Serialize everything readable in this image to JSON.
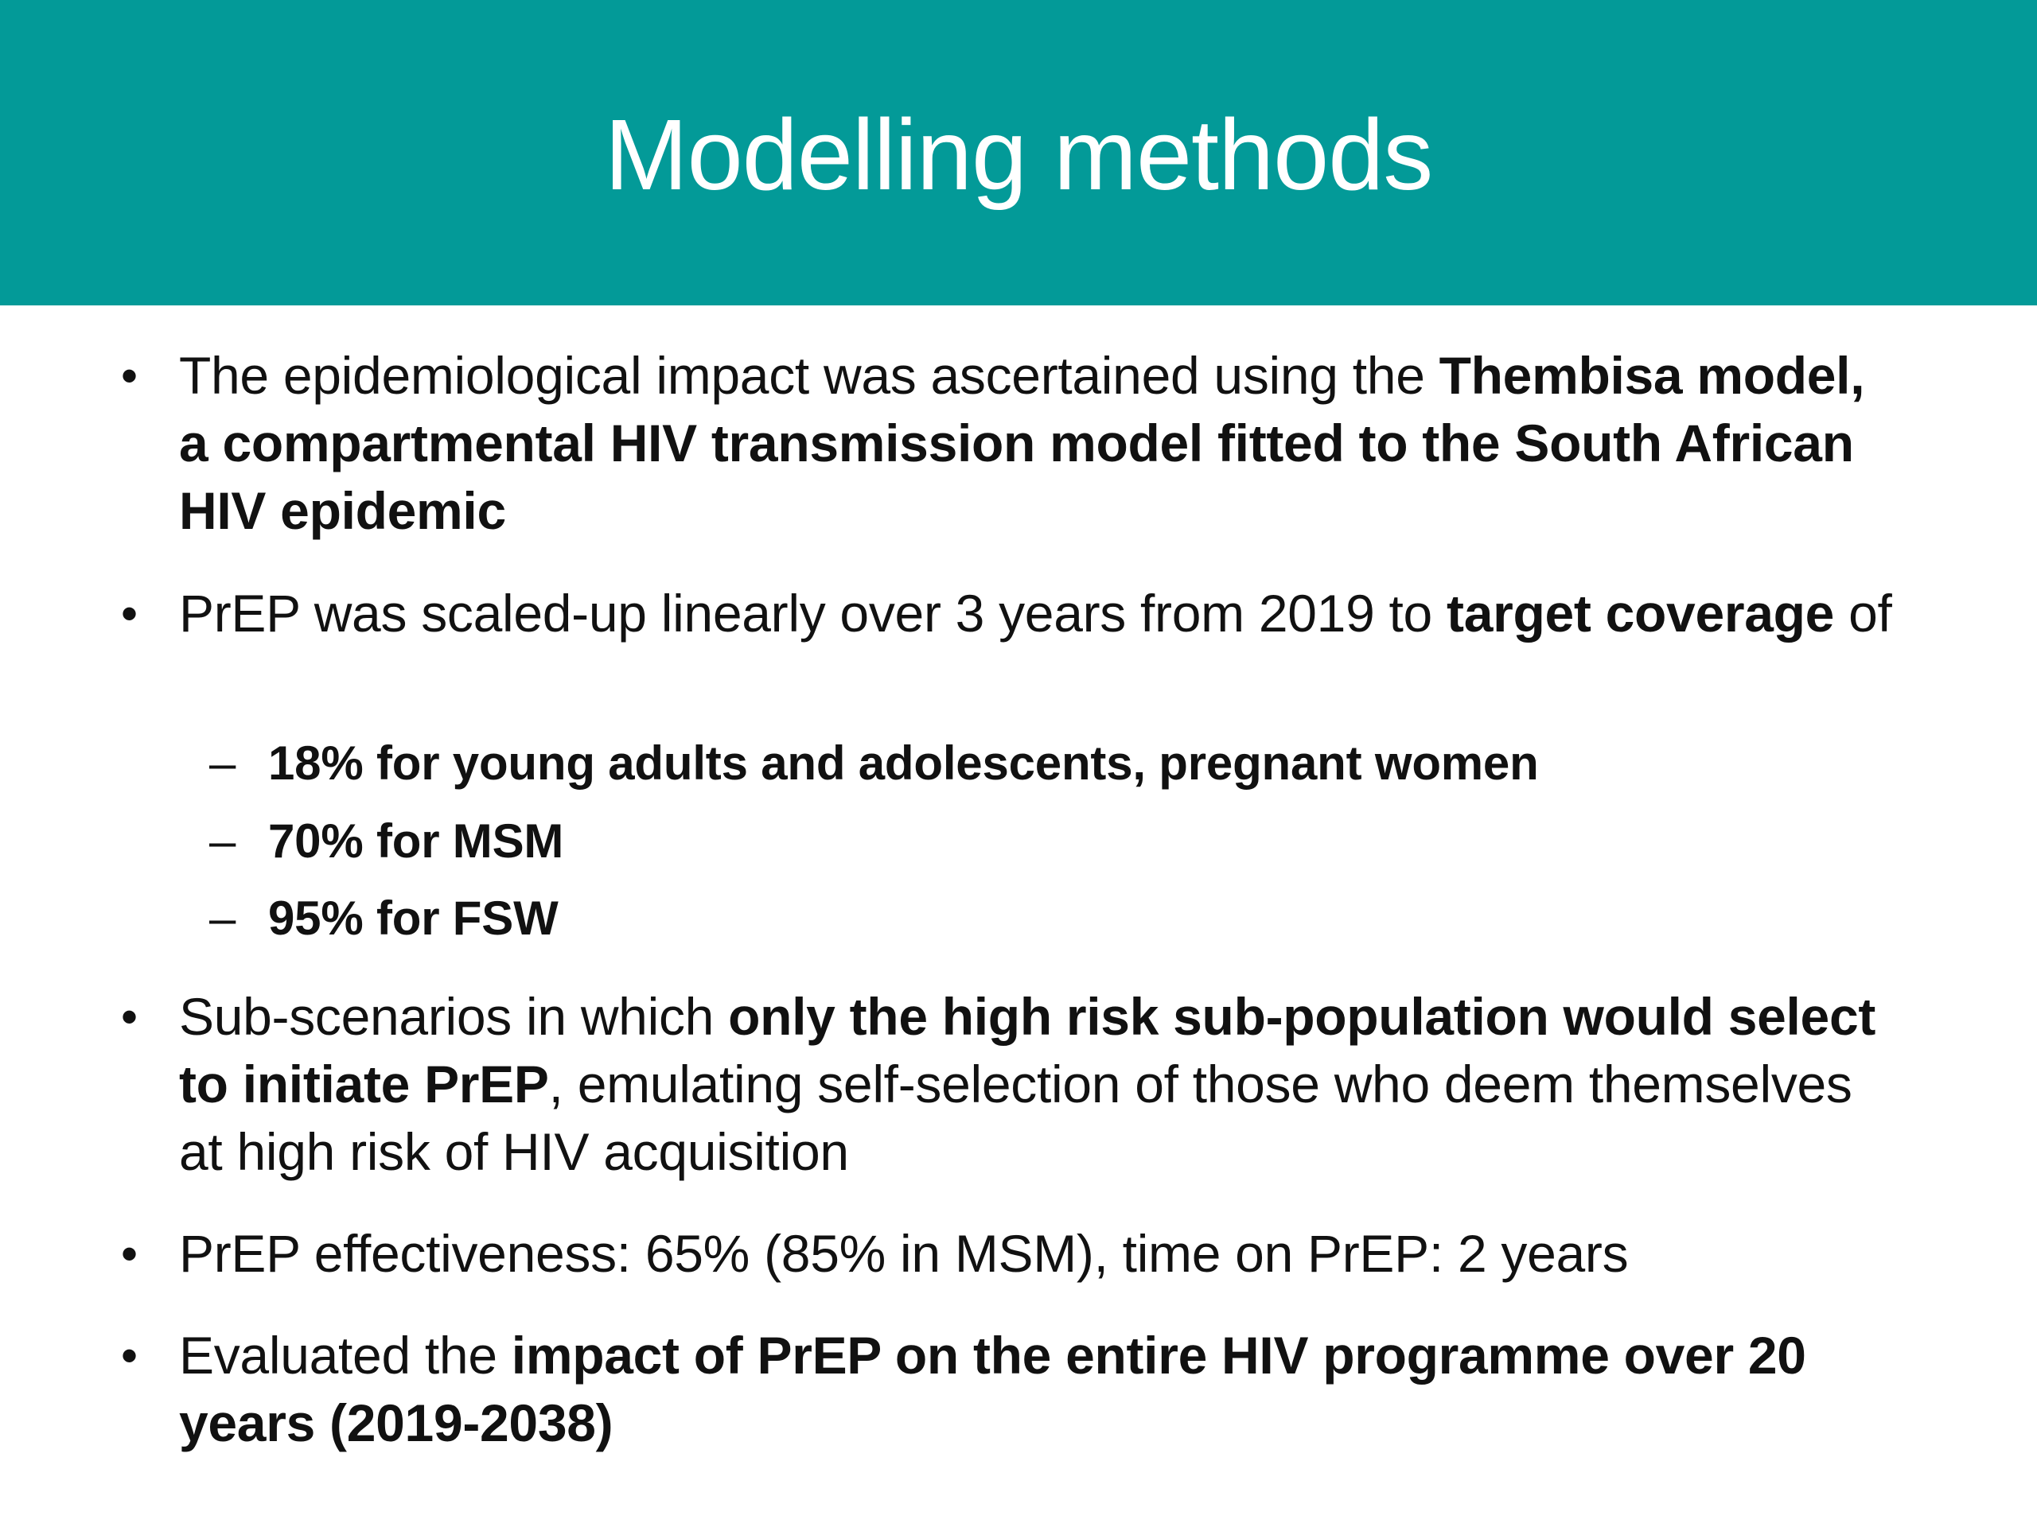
{
  "colors": {
    "header_background": "#039a98",
    "title_text": "#ffffff",
    "body_text": "#111111"
  },
  "slide": {
    "title": "Modelling methods",
    "bullet_marker": "•",
    "sub_marker": "–",
    "bullets": [
      {
        "parts": [
          {
            "text": "The epidemiological impact was ascertained using the ",
            "bold": false
          },
          {
            "text": "Thembisa model, a compartmental HIV transmission model fitted to the South African HIV epidemic",
            "bold": true
          }
        ]
      },
      {
        "parts": [
          {
            "text": "PrEP was scaled-up linearly over 3 years from 2019 to ",
            "bold": false
          },
          {
            "text": "target coverage",
            "bold": true
          },
          {
            "text": " of",
            "bold": false
          }
        ],
        "sub_items": [
          "18% for young adults and adolescents, pregnant women",
          "70% for MSM",
          "95% for FSW"
        ]
      },
      {
        "parts": [
          {
            "text": "Sub-scenarios in which ",
            "bold": false
          },
          {
            "text": "only the high risk sub-population would select to initiate PrEP",
            "bold": true
          },
          {
            "text": ", emulating self-selection of those who deem themselves at high risk of HIV acquisition",
            "bold": false
          }
        ]
      },
      {
        "parts": [
          {
            "text": "PrEP effectiveness: 65% (85% in MSM), time on PrEP: 2 years",
            "bold": false
          }
        ]
      },
      {
        "parts": [
          {
            "text": "Evaluated the ",
            "bold": false
          },
          {
            "text": "impact of PrEP on the entire HIV programme over 20 years (2019-2038)",
            "bold": true
          }
        ]
      }
    ]
  }
}
